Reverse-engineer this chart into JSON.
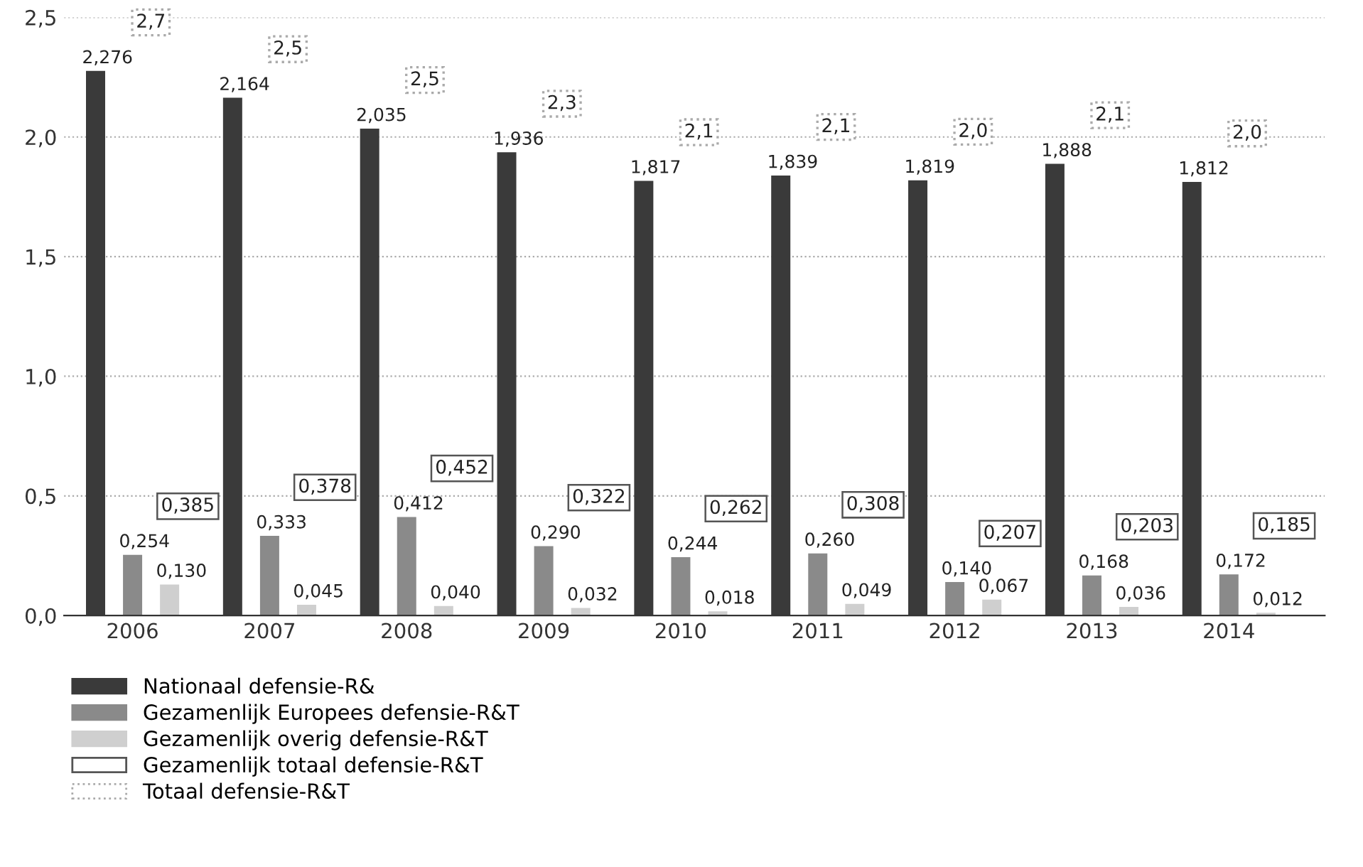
{
  "chart_data": {
    "type": "bar",
    "categories": [
      "2006",
      "2007",
      "2008",
      "2009",
      "2010",
      "2011",
      "2012",
      "2013",
      "2014"
    ],
    "series": [
      {
        "name": "Nationaal defensie-R&",
        "color": "#3a3a3a",
        "values": [
          2.276,
          2.164,
          2.035,
          1.936,
          1.817,
          1.839,
          1.819,
          1.888,
          1.812
        ],
        "value_labels": [
          "2,276",
          "2,164",
          "2,035",
          "1,936",
          "1,817",
          "1,839",
          "1,819",
          "1,888",
          "1,812"
        ]
      },
      {
        "name": "Gezamenlijk Europees defensie-R&T",
        "color": "#8a8a8a",
        "values": [
          0.254,
          0.333,
          0.412,
          0.29,
          0.244,
          0.26,
          0.14,
          0.168,
          0.172
        ],
        "value_labels": [
          "0,254",
          "0,333",
          "0,412",
          "0,290",
          "0,244",
          "0,260",
          "0,140",
          "0,168",
          "0,172"
        ]
      },
      {
        "name": "Gezamenlijk overig defensie-R&T",
        "color": "#cfcfcf",
        "values": [
          0.13,
          0.045,
          0.04,
          0.032,
          0.018,
          0.049,
          0.067,
          0.036,
          0.012
        ],
        "value_labels": [
          "0,130",
          "0,045",
          "0,040",
          "0,032",
          "0,018",
          "0,049",
          "0,067",
          "0,036",
          "0,012"
        ]
      },
      {
        "name": "Gezamenlijk totaal defensie-R&T",
        "type": "other",
        "color": "#555555",
        "line_style": "solid",
        "values": [
          null,
          null,
          null,
          null,
          null,
          null,
          null,
          null,
          null
        ],
        "value_labels": [
          "0,385",
          "0,378",
          "0,452",
          "0,322",
          "0,262",
          "0,308",
          "0,207",
          "0,203",
          "0,185"
        ]
      },
      {
        "name": "Totaal defensie-R&T",
        "type": "other",
        "color": "#aaaaaa",
        "line_style": "dotted",
        "values": [
          null,
          null,
          null,
          null,
          null,
          null,
          null,
          null,
          null
        ],
        "value_labels": [
          "2,7",
          "2,5",
          "2,5",
          "2,3",
          "2,1",
          "2,1",
          "2,0",
          "2,1",
          "2,0"
        ]
      }
    ],
    "ylim": [
      0,
      2.5
    ],
    "yticks": [
      {
        "value": 0,
        "label": "0,0"
      },
      {
        "value": 0.5,
        "label": "0,5"
      },
      {
        "value": 1,
        "label": "1,0"
      },
      {
        "value": 1.5,
        "label": "1,5"
      },
      {
        "value": 2,
        "label": "2,0"
      },
      {
        "value": 2.5,
        "label": "2,5"
      }
    ],
    "grid": "y",
    "legend": "bottom left"
  }
}
